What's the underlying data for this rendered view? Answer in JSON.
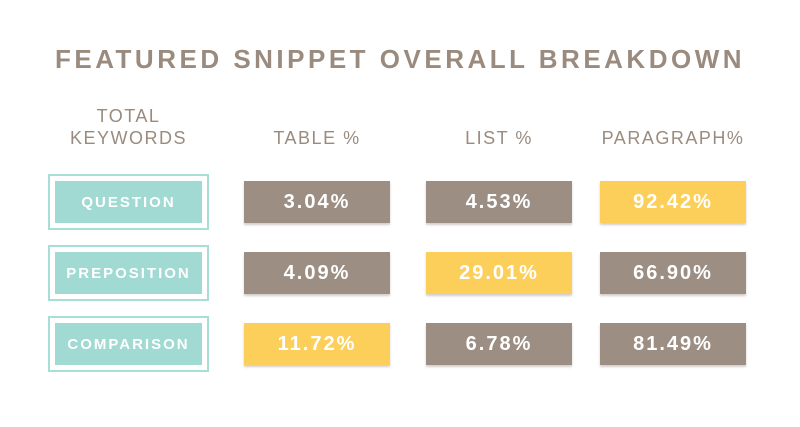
{
  "title": "FEATURED SNIPPET OVERALL BREAKDOWN",
  "colors": {
    "taupe_cell": "#9c8e82",
    "yellow_highlight": "#fccf5a",
    "teal_badge": "#a0dad3",
    "teal_border": "#a8ded8",
    "heading_text": "#9a8b7e",
    "cell_text": "#ffffff",
    "background": "#ffffff"
  },
  "header": {
    "keywords_line1": "TOTAL",
    "keywords_line2": "KEYWORDS",
    "columns": [
      "TABLE %",
      "LIST %",
      "PARAGRAPH%"
    ]
  },
  "table": {
    "rows": [
      {
        "keyword": "QUESTION",
        "cells": [
          {
            "value": "3.04%",
            "style": "taupe"
          },
          {
            "value": "4.53%",
            "style": "taupe"
          },
          {
            "value": "92.42%",
            "style": "yellow"
          }
        ]
      },
      {
        "keyword": "PREPOSITION",
        "cells": [
          {
            "value": "4.09%",
            "style": "taupe"
          },
          {
            "value": "29.01%",
            "style": "yellow"
          },
          {
            "value": "66.90%",
            "style": "taupe"
          }
        ]
      },
      {
        "keyword": "COMPARISON",
        "cells": [
          {
            "value": "11.72%",
            "style": "yellow"
          },
          {
            "value": "6.78%",
            "style": "taupe"
          },
          {
            "value": "81.49%",
            "style": "taupe"
          }
        ]
      }
    ]
  },
  "chart_data": {
    "type": "table",
    "title": "FEATURED SNIPPET OVERALL BREAKDOWN",
    "row_header_label": "TOTAL KEYWORDS",
    "columns": [
      "TABLE %",
      "LIST %",
      "PARAGRAPH%"
    ],
    "rows": [
      "QUESTION",
      "PREPOSITION",
      "COMPARISON"
    ],
    "values": [
      [
        3.04,
        4.53,
        92.42
      ],
      [
        4.09,
        29.01,
        66.9
      ],
      [
        11.72,
        6.78,
        81.49
      ]
    ],
    "highlighted_cells_row_col": [
      [
        0,
        2
      ],
      [
        1,
        1
      ],
      [
        2,
        0
      ]
    ],
    "highlight_color": "#fccf5a",
    "default_cell_color": "#9c8e82",
    "row_label_color": "#a0dad3",
    "legend_position": "none",
    "grid": false
  }
}
